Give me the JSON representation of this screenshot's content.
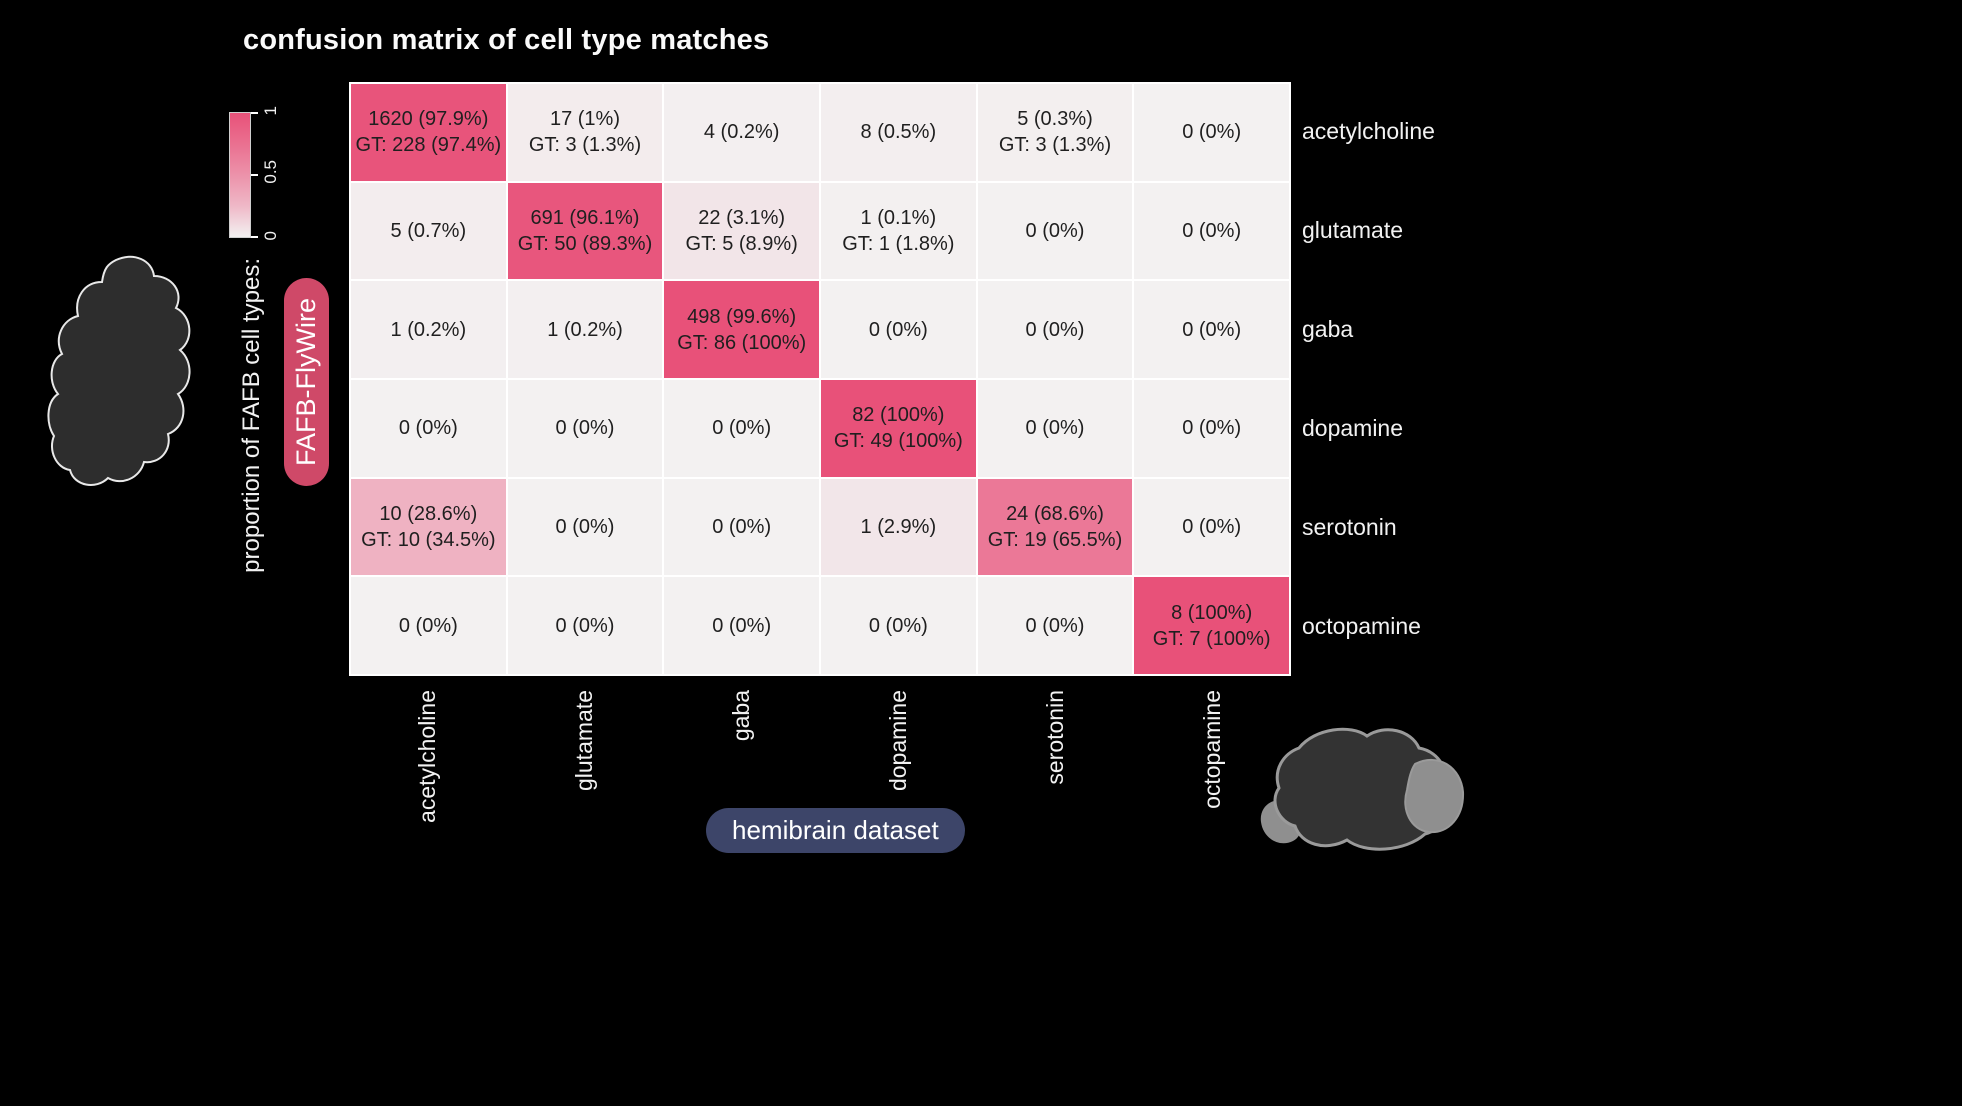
{
  "colors": {
    "background": "#000000",
    "heat_high": "#e85179",
    "heat_low": "#f3f1f1",
    "grid_line": "#ffffff",
    "row_pill_bg": "#cf4968",
    "col_pill_bg": "#3d4569",
    "cell_text": "#1f1f1f",
    "label_text": "#f2f2f2"
  },
  "chart_data": {
    "type": "heatmap",
    "title": "confusion matrix of cell type matches",
    "row_axis": {
      "label": "proportion of FAFB cell types:",
      "dataset": "FAFB-FlyWire"
    },
    "col_axis": {
      "dataset": "hemibrain dataset"
    },
    "rows": [
      "acetylcholine",
      "glutamate",
      "gaba",
      "dopamine",
      "serotonin",
      "octopamine"
    ],
    "cols": [
      "acetylcholine",
      "glutamate",
      "gaba",
      "dopamine",
      "serotonin",
      "octopamine"
    ],
    "colorbar": {
      "min": 0,
      "max": 1,
      "ticks": [
        "1",
        "0.5",
        "0"
      ]
    },
    "cells": [
      [
        {
          "v": "1620 (97.9%)",
          "gt": "GT: 228 (97.4%)",
          "p": 0.979
        },
        {
          "v": "17 (1%)",
          "gt": "GT: 3 (1.3%)",
          "p": 0.01
        },
        {
          "v": "4 (0.2%)",
          "p": 0.002
        },
        {
          "v": "8 (0.5%)",
          "p": 0.005
        },
        {
          "v": "5 (0.3%)",
          "gt": "GT: 3 (1.3%)",
          "p": 0.003
        },
        {
          "v": "0 (0%)",
          "p": 0
        }
      ],
      [
        {
          "v": "5 (0.7%)",
          "p": 0.007
        },
        {
          "v": "691 (96.1%)",
          "gt": "GT: 50 (89.3%)",
          "p": 0.961
        },
        {
          "v": "22 (3.1%)",
          "gt": "GT: 5 (8.9%)",
          "p": 0.031
        },
        {
          "v": "1 (0.1%)",
          "gt": "GT: 1 (1.8%)",
          "p": 0.001
        },
        {
          "v": "0 (0%)",
          "p": 0
        },
        {
          "v": "0 (0%)",
          "p": 0
        }
      ],
      [
        {
          "v": "1 (0.2%)",
          "p": 0.002
        },
        {
          "v": "1 (0.2%)",
          "p": 0.002
        },
        {
          "v": "498 (99.6%)",
          "gt": "GT: 86 (100%)",
          "p": 0.996
        },
        {
          "v": "0 (0%)",
          "p": 0
        },
        {
          "v": "0 (0%)",
          "p": 0
        },
        {
          "v": "0 (0%)",
          "p": 0
        }
      ],
      [
        {
          "v": "0 (0%)",
          "p": 0
        },
        {
          "v": "0 (0%)",
          "p": 0
        },
        {
          "v": "0 (0%)",
          "p": 0
        },
        {
          "v": "82 (100%)",
          "gt": "GT: 49 (100%)",
          "p": 1
        },
        {
          "v": "0 (0%)",
          "p": 0
        },
        {
          "v": "0 (0%)",
          "p": 0
        }
      ],
      [
        {
          "v": "10 (28.6%)",
          "gt": "GT: 10 (34.5%)",
          "p": 0.286
        },
        {
          "v": "0 (0%)",
          "p": 0
        },
        {
          "v": "0 (0%)",
          "p": 0
        },
        {
          "v": "1 (2.9%)",
          "p": 0.029
        },
        {
          "v": "24 (68.6%)",
          "gt": "GT: 19 (65.5%)",
          "p": 0.686
        },
        {
          "v": "0 (0%)",
          "p": 0
        }
      ],
      [
        {
          "v": "0 (0%)",
          "p": 0
        },
        {
          "v": "0 (0%)",
          "p": 0
        },
        {
          "v": "0 (0%)",
          "p": 0
        },
        {
          "v": "0 (0%)",
          "p": 0
        },
        {
          "v": "0 (0%)",
          "p": 0
        },
        {
          "v": "8 (100%)",
          "gt": "GT: 7 (100%)",
          "p": 1
        }
      ]
    ]
  }
}
